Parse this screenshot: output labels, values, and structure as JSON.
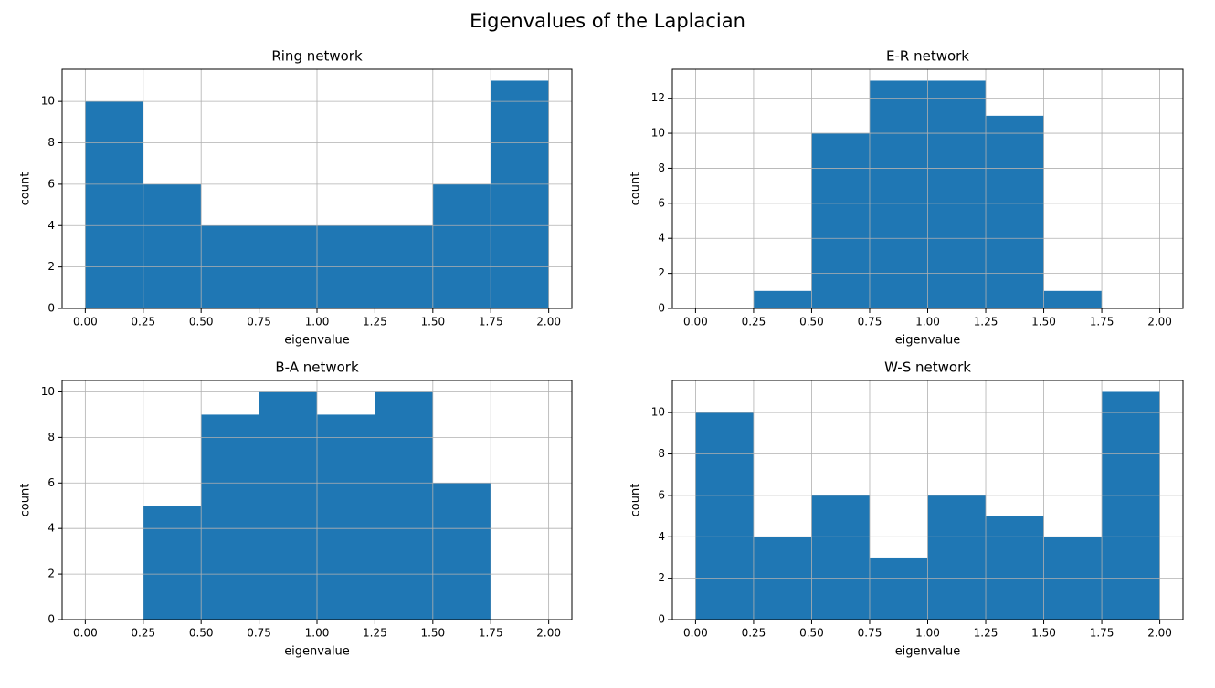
{
  "title": "Eigenvalues of the Laplacian",
  "chart_data": [
    {
      "type": "histogram",
      "title": "Ring network",
      "xlabel": "eigenvalue",
      "ylabel": "count",
      "color": "#1f77b4",
      "grid": true,
      "bins": [
        0,
        0.25,
        0.5,
        0.75,
        1.0,
        1.25,
        1.5,
        1.75,
        2.0
      ],
      "counts": [
        10,
        6,
        4,
        4,
        4,
        4,
        6,
        11
      ],
      "xlim": [
        -0.1,
        2.1
      ],
      "ylim": [
        0,
        11.55
      ],
      "xticks": [
        {
          "value": 0,
          "label": "0.00"
        },
        {
          "value": 0.25,
          "label": "0.25"
        },
        {
          "value": 0.5,
          "label": "0.50"
        },
        {
          "value": 0.75,
          "label": "0.75"
        },
        {
          "value": 1.0,
          "label": "1.00"
        },
        {
          "value": 1.25,
          "label": "1.25"
        },
        {
          "value": 1.5,
          "label": "1.50"
        },
        {
          "value": 1.75,
          "label": "1.75"
        },
        {
          "value": 2.0,
          "label": "2.00"
        }
      ],
      "yticks": [
        0,
        2,
        4,
        6,
        8,
        10
      ]
    },
    {
      "type": "histogram",
      "title": "E-R network",
      "xlabel": "eigenvalue",
      "ylabel": "count",
      "color": "#1f77b4",
      "grid": true,
      "bins": [
        0,
        0.25,
        0.5,
        0.75,
        1.0,
        1.25,
        1.5,
        1.75,
        2.0
      ],
      "counts": [
        0,
        1,
        10,
        13,
        13,
        11,
        1,
        0
      ],
      "xlim": [
        -0.1,
        2.1
      ],
      "ylim": [
        0,
        13.65
      ],
      "xticks": [
        {
          "value": 0,
          "label": "0.00"
        },
        {
          "value": 0.25,
          "label": "0.25"
        },
        {
          "value": 0.5,
          "label": "0.50"
        },
        {
          "value": 0.75,
          "label": "0.75"
        },
        {
          "value": 1.0,
          "label": "1.00"
        },
        {
          "value": 1.25,
          "label": "1.25"
        },
        {
          "value": 1.5,
          "label": "1.50"
        },
        {
          "value": 1.75,
          "label": "1.75"
        },
        {
          "value": 2.0,
          "label": "2.00"
        }
      ],
      "yticks": [
        0,
        2,
        4,
        6,
        8,
        10,
        12
      ]
    },
    {
      "type": "histogram",
      "title": "B-A network",
      "xlabel": "eigenvalue",
      "ylabel": "count",
      "color": "#1f77b4",
      "grid": true,
      "bins": [
        0,
        0.25,
        0.5,
        0.75,
        1.0,
        1.25,
        1.5,
        1.75,
        2.0
      ],
      "counts": [
        0,
        5,
        9,
        10,
        9,
        10,
        6,
        0
      ],
      "xlim": [
        -0.1,
        2.1
      ],
      "ylim": [
        0,
        10.5
      ],
      "xticks": [
        {
          "value": 0,
          "label": "0.00"
        },
        {
          "value": 0.25,
          "label": "0.25"
        },
        {
          "value": 0.5,
          "label": "0.50"
        },
        {
          "value": 0.75,
          "label": "0.75"
        },
        {
          "value": 1.0,
          "label": "1.00"
        },
        {
          "value": 1.25,
          "label": "1.25"
        },
        {
          "value": 1.5,
          "label": "1.50"
        },
        {
          "value": 1.75,
          "label": "1.75"
        },
        {
          "value": 2.0,
          "label": "2.00"
        }
      ],
      "yticks": [
        0,
        2,
        4,
        6,
        8,
        10
      ]
    },
    {
      "type": "histogram",
      "title": "W-S network",
      "xlabel": "eigenvalue",
      "ylabel": "count",
      "color": "#1f77b4",
      "grid": true,
      "bins": [
        0,
        0.25,
        0.5,
        0.75,
        1.0,
        1.25,
        1.5,
        1.75,
        2.0
      ],
      "counts": [
        10,
        4,
        6,
        3,
        6,
        5,
        4,
        11
      ],
      "xlim": [
        -0.1,
        2.1
      ],
      "ylim": [
        0,
        11.55
      ],
      "xticks": [
        {
          "value": 0,
          "label": "0.00"
        },
        {
          "value": 0.25,
          "label": "0.25"
        },
        {
          "value": 0.5,
          "label": "0.50"
        },
        {
          "value": 0.75,
          "label": "0.75"
        },
        {
          "value": 1.0,
          "label": "1.00"
        },
        {
          "value": 1.25,
          "label": "1.25"
        },
        {
          "value": 1.5,
          "label": "1.50"
        },
        {
          "value": 1.75,
          "label": "1.75"
        },
        {
          "value": 2.0,
          "label": "2.00"
        }
      ],
      "yticks": [
        0,
        2,
        4,
        6,
        8,
        10
      ]
    }
  ]
}
